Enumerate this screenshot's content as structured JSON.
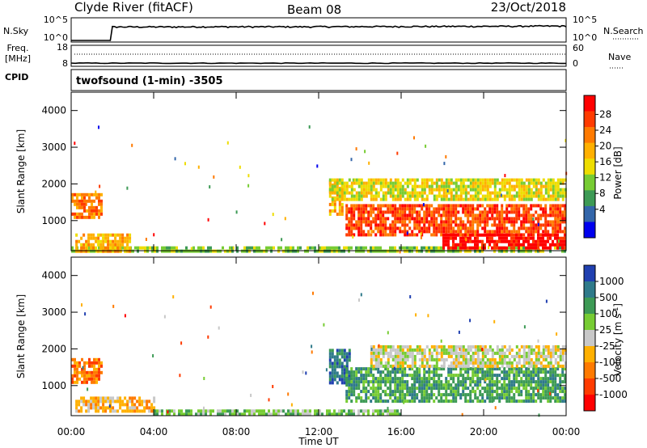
{
  "header": {
    "station": "Clyde River (fitACF)",
    "beam": "Beam 08",
    "date": "23/Oct/2018"
  },
  "nsky": {
    "label": "N.Sky",
    "ticks": [
      "10^5",
      "10^0"
    ],
    "right_ticks": [
      "10^5",
      "10^0"
    ],
    "right_label": "N.Search"
  },
  "freq": {
    "label_line1": "Freq.",
    "label_line2": "[MHz]",
    "ticks": [
      "18",
      "8"
    ],
    "right_ticks": [
      "60",
      "0"
    ],
    "right_label": "Nave"
  },
  "cpid": {
    "label": "CPID",
    "text": "twofsound (1-min) -3505"
  },
  "x_ticks": [
    "00:00",
    "04:00",
    "08:00",
    "12:00",
    "16:00",
    "20:00",
    "00:00"
  ],
  "x_title": "Time UT",
  "y_title": "Slant Range [km]",
  "y_ticks": [
    "1000",
    "2000",
    "3000",
    "4000"
  ],
  "power_bar": {
    "title": "Power [dB]",
    "labels": [
      "28",
      "24",
      "20",
      "16",
      "12",
      "8",
      "4"
    ],
    "colors": [
      "#ff0000",
      "#ff3b00",
      "#ff7a00",
      "#ffb000",
      "#eedd00",
      "#77cc33",
      "#3d9a55",
      "#3366aa",
      "#0000ee"
    ]
  },
  "velocity_bar": {
    "title": "Velocity [m s",
    "title_sup": "-1",
    "title_end": "]",
    "labels": [
      "1000",
      "500",
      "100",
      "25",
      "-25",
      "-100",
      "-500",
      "-1000"
    ],
    "colors": [
      "#2040b0",
      "#2f7a8a",
      "#3d9a55",
      "#77cc33",
      "#c8c8c8",
      "#ffb000",
      "#ff7a00",
      "#ff3b00",
      "#ff0000"
    ]
  },
  "chart_data": [
    {
      "type": "line",
      "name_label": "N.Sky",
      "x_range_hours": [
        0,
        24
      ],
      "values_approx": [
        0.01,
        1500,
        1500,
        1600,
        1600,
        1600,
        1700,
        1800,
        1900,
        2000,
        2100,
        2300,
        2500
      ]
    },
    {
      "type": "line",
      "name_label": "Freq.",
      "x_range_hours": [
        0,
        24
      ],
      "values_approx_mhz": 9.5
    },
    {
      "type": "heatmap",
      "quantity": "Power [dB]",
      "x_range_hours": [
        0,
        24
      ],
      "y_range_km": [
        180,
        4500
      ],
      "color_levels_db": [
        4,
        8,
        12,
        16,
        20,
        24,
        28
      ],
      "regions": [
        {
          "t": [
            0.0,
            1.5
          ],
          "r": [
            1050,
            1750
          ],
          "lvl": 6
        },
        {
          "t": [
            0.0,
            24.0
          ],
          "r": [
            180,
            300
          ],
          "lvl": 3
        },
        {
          "t": [
            0.2,
            2.8
          ],
          "r": [
            180,
            650
          ],
          "lvl": 5
        },
        {
          "t": [
            12.5,
            13.2
          ],
          "r": [
            1200,
            2100
          ],
          "lvl": 5
        },
        {
          "t": [
            12.5,
            24.0
          ],
          "r": [
            1550,
            2150
          ],
          "lvl": 4
        },
        {
          "t": [
            13.3,
            24.0
          ],
          "r": [
            600,
            1450
          ],
          "lvl": 7
        },
        {
          "t": [
            18.0,
            24.0
          ],
          "r": [
            250,
            650
          ],
          "lvl": 8
        }
      ]
    },
    {
      "type": "heatmap",
      "quantity": "Velocity [m s-1]",
      "x_range_hours": [
        0,
        24
      ],
      "y_range_km": [
        180,
        4500
      ],
      "color_levels": [
        -1000,
        -500,
        -100,
        -25,
        25,
        100,
        500,
        1000
      ],
      "regions": [
        {
          "t": [
            0.0,
            1.5
          ],
          "r": [
            1050,
            1750
          ],
          "lvl": 2
        },
        {
          "t": [
            0.2,
            4.0
          ],
          "r": [
            300,
            700
          ],
          "lvl": 3
        },
        {
          "t": [
            12.5,
            13.5
          ],
          "r": [
            1100,
            2000
          ],
          "lvl": 7
        },
        {
          "t": [
            13.3,
            24.0
          ],
          "r": [
            600,
            1500
          ],
          "lvl": 6
        },
        {
          "t": [
            14.5,
            24.0
          ],
          "r": [
            1550,
            2100
          ],
          "lvl": 4
        },
        {
          "t": [
            4.0,
            16.0
          ],
          "r": [
            180,
            350
          ],
          "lvl": 5
        }
      ]
    }
  ]
}
